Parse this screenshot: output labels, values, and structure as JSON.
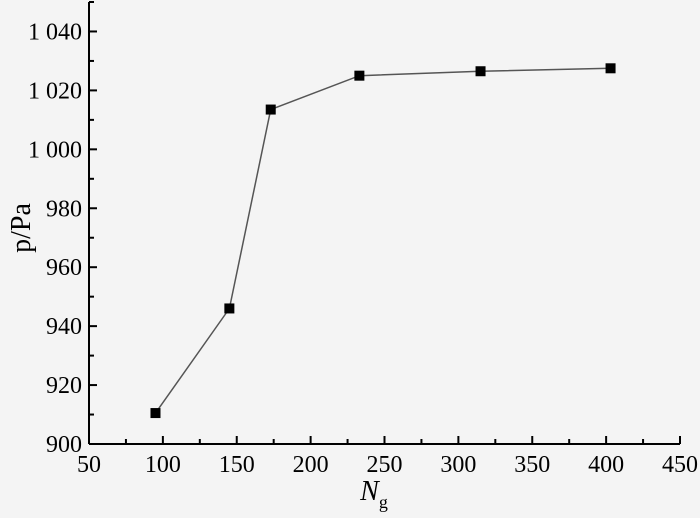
{
  "chart_data": {
    "type": "line",
    "xlabel": "N",
    "xlabel_sub": "g",
    "ylabel": "p/Pa",
    "xlim": [
      50,
      450
    ],
    "ylim": [
      900,
      1050
    ],
    "xticks": [
      50,
      100,
      150,
      200,
      250,
      300,
      350,
      400,
      450
    ],
    "xtick_labels": [
      "50",
      "100",
      "150",
      "200",
      "250",
      "300",
      "350",
      "400",
      "450"
    ],
    "yticks": [
      900,
      920,
      940,
      960,
      980,
      1000,
      1020,
      1040
    ],
    "ytick_labels": [
      "900",
      "920",
      "940",
      "960",
      "980",
      "1 000",
      "1 020",
      "1 040"
    ],
    "grid": false,
    "marker": "square",
    "series": [
      {
        "x": [
          95,
          145,
          173,
          233,
          315,
          403
        ],
        "y": [
          910.5,
          946,
          1013.5,
          1025,
          1026.5,
          1027.5
        ]
      }
    ]
  }
}
